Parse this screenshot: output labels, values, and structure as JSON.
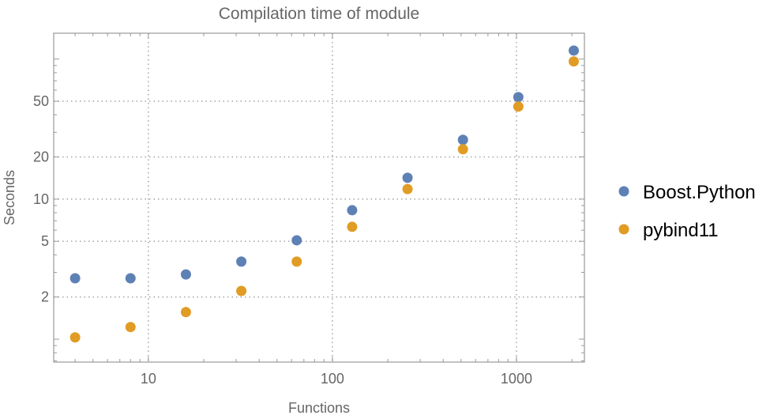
{
  "chart_data": {
    "type": "scatter",
    "title": "Compilation time of module",
    "xlabel": "Functions",
    "ylabel": "Seconds",
    "xscale": "log",
    "yscale": "log",
    "xlim": [
      3.06,
      2340
    ],
    "ylim": [
      0.686,
      153
    ],
    "xticks": [
      10,
      100,
      1000
    ],
    "xtick_labels": [
      "10",
      "100",
      "1000"
    ],
    "yticks": [
      2,
      5,
      10,
      20,
      50
    ],
    "ytick_labels": [
      "2",
      "5",
      "10",
      "20",
      "50"
    ],
    "grid": true,
    "legend_position": "right",
    "x": [
      4,
      8,
      16,
      32,
      64,
      128,
      256,
      512,
      1024,
      2048
    ],
    "series": [
      {
        "name": "Boost.Python",
        "color": "#5e81b5",
        "values": [
          2.72,
          2.72,
          2.9,
          3.58,
          5.08,
          8.33,
          14.2,
          26.5,
          53.5,
          115
        ]
      },
      {
        "name": "pybind11",
        "color": "#e19c24",
        "values": [
          1.03,
          1.22,
          1.56,
          2.21,
          3.58,
          6.34,
          11.8,
          22.7,
          45.8,
          96.2
        ]
      }
    ]
  }
}
